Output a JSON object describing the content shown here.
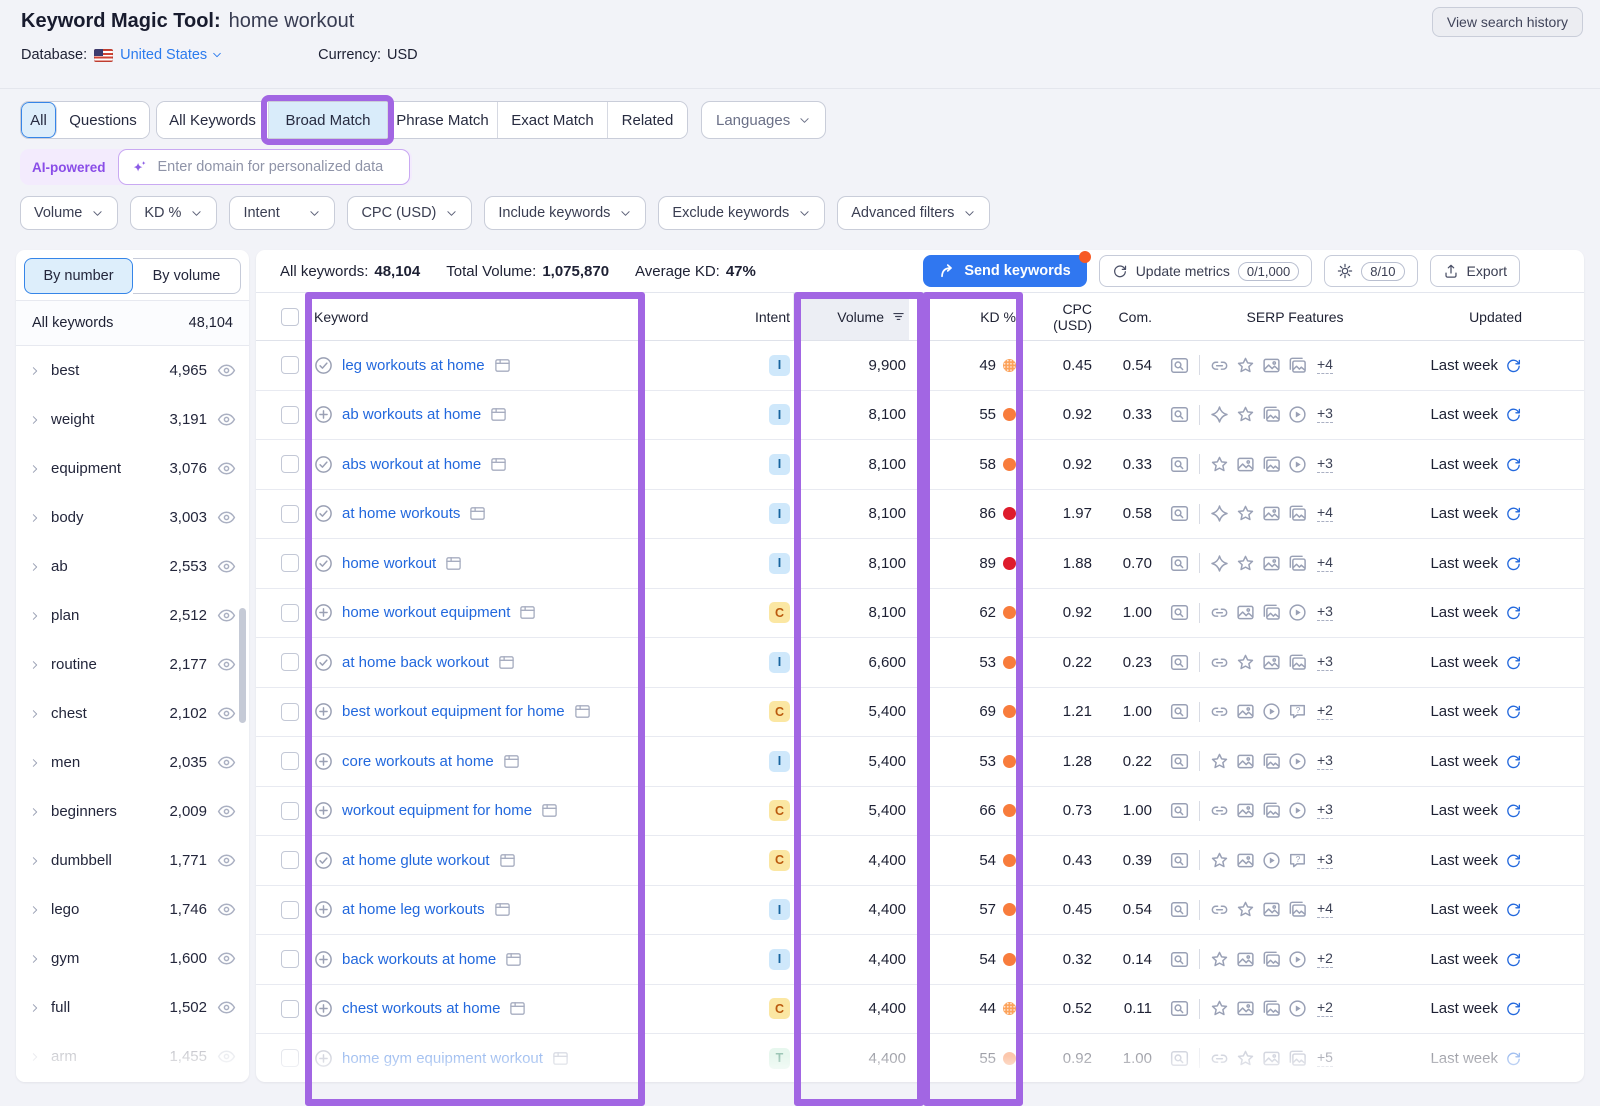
{
  "header": {
    "title": "Keyword Magic Tool:",
    "query": "home workout",
    "history_button": "View search history",
    "database_label": "Database:",
    "database_value": "United States",
    "currency_label": "Currency:",
    "currency_value": "USD"
  },
  "tabs": {
    "group1": [
      "All",
      "Questions"
    ],
    "group2": [
      "All Keywords",
      "Broad Match",
      "Phrase Match",
      "Exact Match",
      "Related"
    ],
    "languages": "Languages"
  },
  "ai": {
    "badge": "AI-powered",
    "placeholder": "Enter domain for personalized data"
  },
  "filters": [
    "Volume",
    "KD %",
    "Intent",
    "CPC (USD)",
    "Include keywords",
    "Exclude keywords",
    "Advanced filters"
  ],
  "sidebar": {
    "view_toggle": [
      "By number",
      "By volume"
    ],
    "all_row": {
      "label": "All keywords",
      "count": "48,104"
    },
    "groups": [
      {
        "label": "best",
        "count": "4,965",
        "faded": false
      },
      {
        "label": "weight",
        "count": "3,191",
        "faded": false
      },
      {
        "label": "equipment",
        "count": "3,076",
        "faded": false
      },
      {
        "label": "body",
        "count": "3,003",
        "faded": false
      },
      {
        "label": "ab",
        "count": "2,553",
        "faded": false
      },
      {
        "label": "plan",
        "count": "2,512",
        "faded": false
      },
      {
        "label": "routine",
        "count": "2,177",
        "faded": false
      },
      {
        "label": "chest",
        "count": "2,102",
        "faded": false
      },
      {
        "label": "men",
        "count": "2,035",
        "faded": false
      },
      {
        "label": "beginners",
        "count": "2,009",
        "faded": false
      },
      {
        "label": "dumbbell",
        "count": "1,771",
        "faded": false
      },
      {
        "label": "lego",
        "count": "1,746",
        "faded": false
      },
      {
        "label": "gym",
        "count": "1,600",
        "faded": false
      },
      {
        "label": "full",
        "count": "1,502",
        "faded": false
      },
      {
        "label": "arm",
        "count": "1,455",
        "faded": true
      }
    ]
  },
  "toolbar": {
    "stats": [
      {
        "label": "All keywords:",
        "value": "48,104"
      },
      {
        "label": "Total Volume:",
        "value": "1,075,870"
      },
      {
        "label": "Average KD:",
        "value": "47%"
      }
    ],
    "send_label": "Send keywords",
    "update_label": "Update metrics",
    "update_quota": "0/1,000",
    "settings_quota": "8/10",
    "export_label": "Export"
  },
  "table": {
    "columns": {
      "keyword": "Keyword",
      "intent": "Intent",
      "volume": "Volume",
      "kd": "KD %",
      "cpc": "CPC (USD)",
      "com": "Com.",
      "serp": "SERP Features",
      "updated": "Updated"
    },
    "rows": [
      {
        "keyword": "leg workouts at home",
        "icon": "check",
        "intent": "I",
        "volume": "9,900",
        "kd": "49",
        "kd_level": "orange-dot",
        "cpc": "0.45",
        "com": "0.54",
        "serp": [
          "sitelinks",
          "reviews",
          "image-pack",
          "video-carousel"
        ],
        "more": "+4",
        "updated": "Last week",
        "faded": false
      },
      {
        "keyword": "ab workouts at home",
        "icon": "plus",
        "intent": "I",
        "volume": "8,100",
        "kd": "55",
        "kd_level": "orange",
        "cpc": "0.92",
        "com": "0.33",
        "serp": [
          "instant-answer",
          "reviews",
          "video-carousel",
          "video"
        ],
        "more": "+3",
        "updated": "Last week",
        "faded": false
      },
      {
        "keyword": "abs workout at home",
        "icon": "check",
        "intent": "I",
        "volume": "8,100",
        "kd": "58",
        "kd_level": "orange",
        "cpc": "0.92",
        "com": "0.33",
        "serp": [
          "reviews",
          "image-pack",
          "video-carousel",
          "video"
        ],
        "more": "+3",
        "updated": "Last week",
        "faded": false
      },
      {
        "keyword": "at home workouts",
        "icon": "check",
        "intent": "I",
        "volume": "8,100",
        "kd": "86",
        "kd_level": "red",
        "cpc": "1.97",
        "com": "0.58",
        "serp": [
          "instant-answer",
          "reviews",
          "image-pack",
          "video-carousel"
        ],
        "more": "+4",
        "updated": "Last week",
        "faded": false
      },
      {
        "keyword": "home workout",
        "icon": "check",
        "intent": "I",
        "volume": "8,100",
        "kd": "89",
        "kd_level": "red",
        "cpc": "1.88",
        "com": "0.70",
        "serp": [
          "instant-answer",
          "reviews",
          "image-pack",
          "video-carousel"
        ],
        "more": "+4",
        "updated": "Last week",
        "faded": false
      },
      {
        "keyword": "home workout equipment",
        "icon": "plus",
        "intent": "C",
        "volume": "8,100",
        "kd": "62",
        "kd_level": "orange",
        "cpc": "0.92",
        "com": "1.00",
        "serp": [
          "sitelinks",
          "image-pack",
          "video-carousel",
          "video"
        ],
        "more": "+3",
        "updated": "Last week",
        "faded": false
      },
      {
        "keyword": "at home back workout",
        "icon": "check",
        "intent": "I",
        "volume": "6,600",
        "kd": "53",
        "kd_level": "orange",
        "cpc": "0.22",
        "com": "0.23",
        "serp": [
          "sitelinks",
          "reviews",
          "image-pack",
          "video-carousel"
        ],
        "more": "+3",
        "updated": "Last week",
        "faded": false
      },
      {
        "keyword": "best workout equipment for home",
        "icon": "plus",
        "intent": "C",
        "volume": "5,400",
        "kd": "69",
        "kd_level": "orange",
        "cpc": "1.21",
        "com": "1.00",
        "serp": [
          "sitelinks",
          "image-pack",
          "video",
          "paa"
        ],
        "more": "+2",
        "updated": "Last week",
        "faded": false
      },
      {
        "keyword": "core workouts at home",
        "icon": "plus",
        "intent": "I",
        "volume": "5,400",
        "kd": "53",
        "kd_level": "orange",
        "cpc": "1.28",
        "com": "0.22",
        "serp": [
          "reviews",
          "image-pack",
          "video-carousel",
          "video"
        ],
        "more": "+3",
        "updated": "Last week",
        "faded": false
      },
      {
        "keyword": "workout equipment for home",
        "icon": "plus",
        "intent": "C",
        "volume": "5,400",
        "kd": "66",
        "kd_level": "orange",
        "cpc": "0.73",
        "com": "1.00",
        "serp": [
          "sitelinks",
          "image-pack",
          "video-carousel",
          "video"
        ],
        "more": "+3",
        "updated": "Last week",
        "faded": false
      },
      {
        "keyword": "at home glute workout",
        "icon": "check",
        "intent": "C",
        "volume": "4,400",
        "kd": "54",
        "kd_level": "orange",
        "cpc": "0.43",
        "com": "0.39",
        "serp": [
          "reviews",
          "image-pack",
          "video",
          "paa"
        ],
        "more": "+3",
        "updated": "Last week",
        "faded": false
      },
      {
        "keyword": "at home leg workouts",
        "icon": "plus",
        "intent": "I",
        "volume": "4,400",
        "kd": "57",
        "kd_level": "orange",
        "cpc": "0.45",
        "com": "0.54",
        "serp": [
          "sitelinks",
          "reviews",
          "image-pack",
          "video-carousel"
        ],
        "more": "+4",
        "updated": "Last week",
        "faded": false
      },
      {
        "keyword": "back workouts at home",
        "icon": "plus",
        "intent": "I",
        "volume": "4,400",
        "kd": "54",
        "kd_level": "orange",
        "cpc": "0.32",
        "com": "0.14",
        "serp": [
          "reviews",
          "image-pack",
          "video-carousel",
          "video"
        ],
        "more": "+2",
        "updated": "Last week",
        "faded": false
      },
      {
        "keyword": "chest workouts at home",
        "icon": "plus",
        "intent": "C",
        "volume": "4,400",
        "kd": "44",
        "kd_level": "orange-dot",
        "cpc": "0.52",
        "com": "0.11",
        "serp": [
          "reviews",
          "image-pack",
          "video-carousel",
          "video"
        ],
        "more": "+2",
        "updated": "Last week",
        "faded": false
      },
      {
        "keyword": "home gym equipment workout",
        "icon": "plus",
        "intent": "T",
        "volume": "4,400",
        "kd": "55",
        "kd_level": "orange",
        "cpc": "0.92",
        "com": "1.00",
        "serp": [
          "sitelinks",
          "reviews",
          "image-pack",
          "video-carousel"
        ],
        "more": "+5",
        "updated": "Last week",
        "faded": true
      }
    ]
  },
  "colors": {
    "highlight_purple": "#a266e3",
    "primary_button_blue": "#3077f0",
    "link_blue": "#2268dd",
    "notification_orange": "#f75a24",
    "kd_orange": "#f87c3c",
    "kd_orange_light": "#fca25a",
    "kd_red": "#de1b2c",
    "intent_i_bg": "#cfe8fb",
    "intent_c_bg": "#fbe7a3",
    "intent_t_bg": "#c7eed8"
  }
}
